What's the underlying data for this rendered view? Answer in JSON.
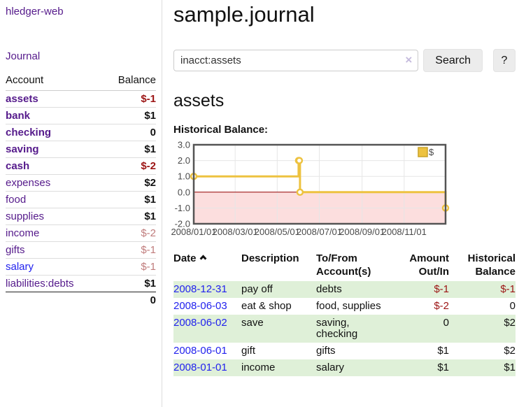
{
  "app": {
    "brand": "hledger-web",
    "nav_journal": "Journal"
  },
  "sidebar": {
    "col_account": "Account",
    "col_balance": "Balance",
    "accounts": [
      {
        "name": "assets",
        "level": 1,
        "bold": true,
        "balance": "$-1",
        "neg": "strong"
      },
      {
        "name": "bank",
        "level": 2,
        "bold": true,
        "balance": "$1",
        "neg": "none"
      },
      {
        "name": "checking",
        "level": 3,
        "bold": true,
        "balance": "0",
        "neg": "none"
      },
      {
        "name": "saving",
        "level": 3,
        "bold": true,
        "balance": "$1",
        "neg": "none"
      },
      {
        "name": "cash",
        "level": 2,
        "bold": true,
        "balance": "$-2",
        "neg": "strong"
      },
      {
        "name": "expenses",
        "level": 1,
        "bold": false,
        "balance": "$2",
        "neg": "none"
      },
      {
        "name": "food",
        "level": 2,
        "bold": false,
        "balance": "$1",
        "neg": "none"
      },
      {
        "name": "supplies",
        "level": 2,
        "bold": false,
        "balance": "$1",
        "neg": "none"
      },
      {
        "name": "income",
        "level": 1,
        "bold": false,
        "balance": "$-2",
        "neg": "soft"
      },
      {
        "name": "gifts",
        "level": 2,
        "bold": false,
        "balance": "$-1",
        "neg": "soft"
      },
      {
        "name": "salary",
        "level": 2,
        "bold": false,
        "balance": "$-1",
        "neg": "soft",
        "link_color": "blue"
      },
      {
        "name": "liabilities:debts",
        "level": 1,
        "bold": false,
        "balance": "$1",
        "neg": "none"
      }
    ],
    "total": "0"
  },
  "header": {
    "title": "sample.journal"
  },
  "search": {
    "value": "inacct:assets",
    "clear_icon": "×",
    "button": "Search",
    "help_button": "?"
  },
  "account_page": {
    "heading": "assets",
    "chart_title": "Historical Balance:"
  },
  "chart_data": {
    "type": "line",
    "step": true,
    "title": "Historical Balance:",
    "series": [
      {
        "name": "$",
        "color": "#edc240",
        "points": [
          [
            "2008-01-01",
            1
          ],
          [
            "2008-06-01",
            2
          ],
          [
            "2008-06-02",
            2
          ],
          [
            "2008-06-03",
            0
          ],
          [
            "2008-12-31",
            -1
          ]
        ]
      }
    ],
    "xlim": [
      "2008-01-01",
      "2008-12-31"
    ],
    "ylim": [
      -2,
      3
    ],
    "x_ticks": [
      "2008/01/01",
      "2008/03/01",
      "2008/05/01",
      "2008/07/01",
      "2008/09/01",
      "2008/11/01"
    ],
    "y_ticks": [
      "3.0",
      "2.0",
      "1.0",
      "0.0",
      "-1.0",
      "-2.0"
    ],
    "grid": true,
    "negative_region_fill": "#fcdede",
    "zero_line_color": "#990000",
    "legend": {
      "label": "$",
      "position": "top-right",
      "swatch_border": "#c9a227"
    }
  },
  "register": {
    "columns": {
      "date": "Date",
      "description": "Description",
      "accounts": "To/From Account(s)",
      "amount": "Amount Out/In",
      "balance": "Historical Balance"
    },
    "rows": [
      {
        "date": "2008-12-31",
        "description": "pay off",
        "accounts": "debts",
        "amount": "$-1",
        "amount_neg": true,
        "balance": "$-1",
        "balance_neg": true,
        "shade": true
      },
      {
        "date": "2008-06-03",
        "description": "eat & shop",
        "accounts": "food, supplies",
        "amount": "$-2",
        "amount_neg": true,
        "balance": "0",
        "balance_neg": false,
        "shade": false
      },
      {
        "date": "2008-06-02",
        "description": "save",
        "accounts": "saving, checking",
        "amount": "0",
        "amount_neg": false,
        "balance": "$2",
        "balance_neg": false,
        "shade": true
      },
      {
        "date": "2008-06-01",
        "description": "gift",
        "accounts": "gifts",
        "amount": "$1",
        "amount_neg": false,
        "balance": "$2",
        "balance_neg": false,
        "shade": false
      },
      {
        "date": "2008-01-01",
        "description": "income",
        "accounts": "salary",
        "amount": "$1",
        "amount_neg": false,
        "balance": "$1",
        "balance_neg": false,
        "shade": true
      }
    ]
  }
}
